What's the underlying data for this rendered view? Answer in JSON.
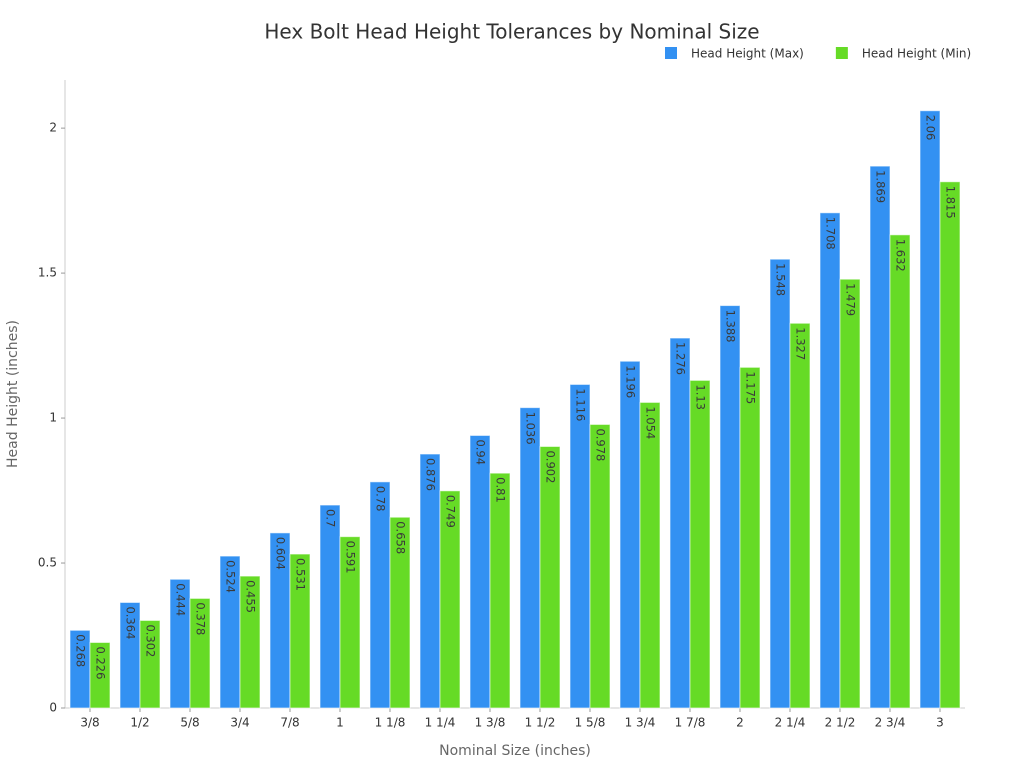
{
  "chart_data": {
    "type": "bar",
    "title": "Hex Bolt Head Height Tolerances by Nominal Size",
    "xlabel": "Nominal Size (inches)",
    "ylabel": "Head Height (inches)",
    "categories": [
      "3/8",
      "1/2",
      "5/8",
      "3/4",
      "7/8",
      "1",
      "1 1/8",
      "1 1/4",
      "1 3/8",
      "1 1/2",
      "1 5/8",
      "1 3/4",
      "1 7/8",
      "2",
      "2 1/4",
      "2 1/2",
      "2 3/4",
      "3"
    ],
    "series": [
      {
        "name": "Head Height (Max)",
        "color": "#3391f2",
        "values": [
          0.268,
          0.364,
          0.444,
          0.524,
          0.604,
          0.7,
          0.78,
          0.876,
          0.94,
          1.036,
          1.116,
          1.196,
          1.276,
          1.388,
          1.548,
          1.708,
          1.869,
          2.06
        ]
      },
      {
        "name": "Head Height (Min)",
        "color": "#66db26",
        "values": [
          0.226,
          0.302,
          0.378,
          0.455,
          0.531,
          0.591,
          0.658,
          0.749,
          0.81,
          0.902,
          0.978,
          1.054,
          1.13,
          1.175,
          1.327,
          1.479,
          1.632,
          1.815
        ]
      }
    ],
    "ylim": [
      0,
      2.166
    ],
    "yticks": [
      0,
      0.5,
      1,
      1.5,
      2
    ],
    "grid": false,
    "legend": "top-right"
  }
}
